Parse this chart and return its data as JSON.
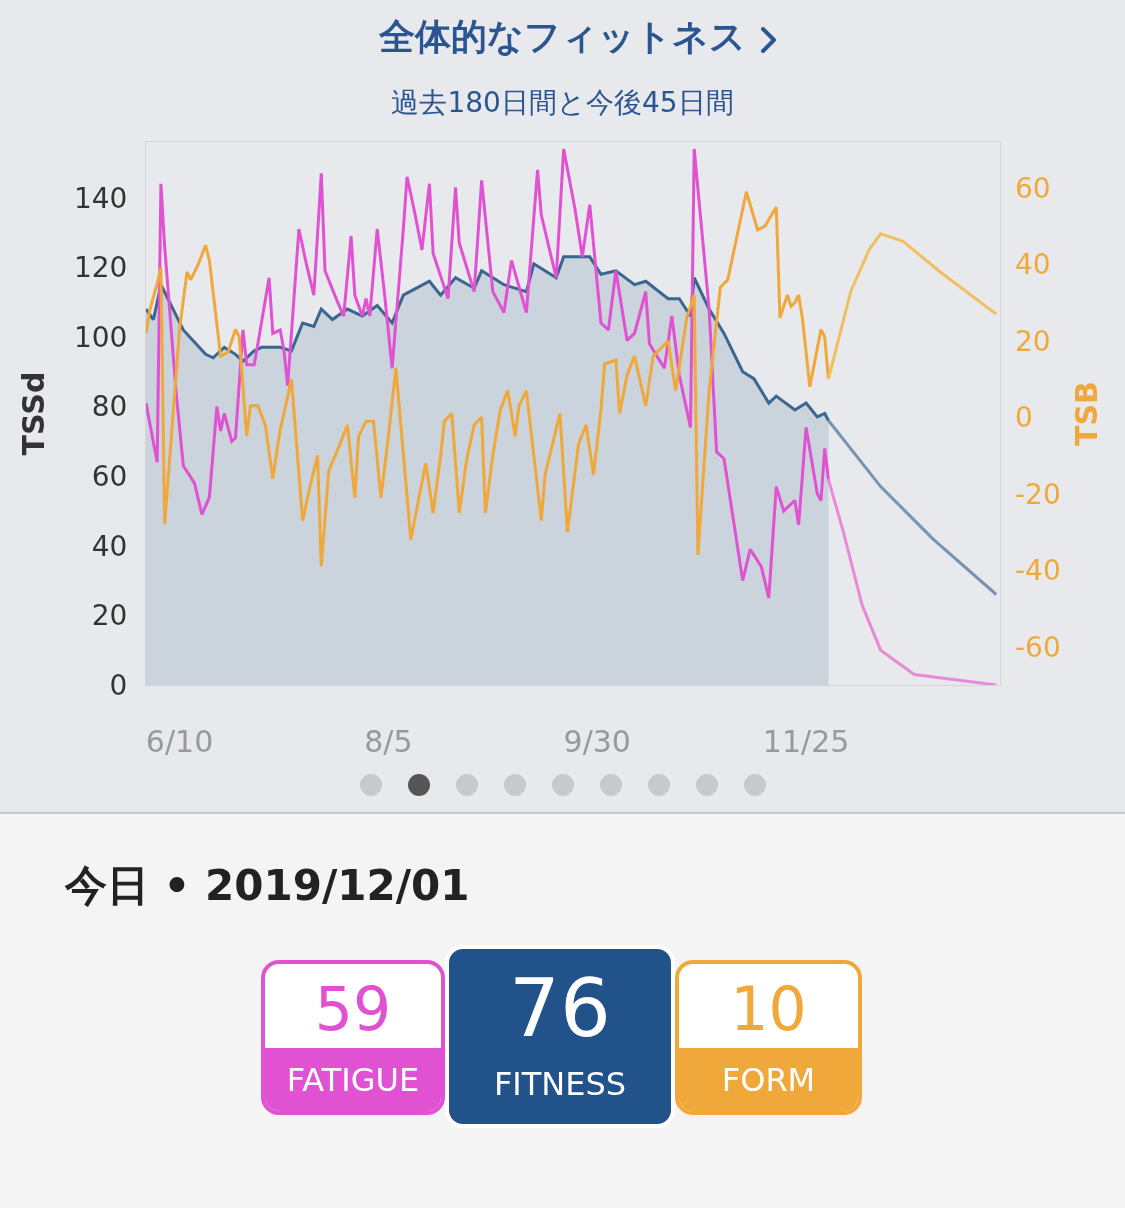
{
  "chart_data": {
    "type": "line",
    "title": "全体的なフィットネス",
    "subtitle": "過去180日間と今後45日間",
    "ylabel": "TSSd",
    "y2label": "TSB",
    "xticks": [
      {
        "value": "2019-06-10",
        "label": "6/10"
      },
      {
        "value": "2019-08-05",
        "label": "8/5"
      },
      {
        "value": "2019-09-30",
        "label": "9/30"
      },
      {
        "value": "2019-11-25",
        "label": "11/25"
      }
    ],
    "xlim": [
      "2019-06-01",
      "2020-01-16"
    ],
    "ylim": [
      0,
      156
    ],
    "yticks": [
      0,
      20,
      40,
      60,
      80,
      100,
      120,
      140
    ],
    "y2lim": [
      -70,
      72
    ],
    "y2ticks": [
      -60,
      -40,
      -20,
      0,
      20,
      40,
      60
    ],
    "annotations": [
      "今日 • 2019/12/01",
      "59",
      "FATIGUE",
      "76",
      "FITNESS",
      "10",
      "FORM"
    ],
    "series": [
      {
        "type": "area",
        "color": "#3a6690",
        "x": [
          "2019-06-01",
          "2019-06-03",
          "2019-06-05",
          "2019-06-11",
          "2019-06-17",
          "2019-06-19",
          "2019-06-22",
          "2019-06-25",
          "2019-06-27",
          "2019-06-30",
          "2019-07-02",
          "2019-07-07",
          "2019-07-10",
          "2019-07-13",
          "2019-07-16",
          "2019-07-18",
          "2019-07-21",
          "2019-07-25",
          "2019-07-29",
          "2019-08-02",
          "2019-08-06",
          "2019-08-09",
          "2019-08-16",
          "2019-08-19",
          "2019-08-23",
          "2019-08-28",
          "2019-08-30",
          "2019-09-05",
          "2019-09-11",
          "2019-09-13",
          "2019-09-19",
          "2019-09-21",
          "2019-09-28",
          "2019-10-01",
          "2019-10-05",
          "2019-10-10",
          "2019-10-13",
          "2019-10-19",
          "2019-10-22",
          "2019-10-25",
          "2019-10-26",
          "2019-10-30",
          "2019-11-03",
          "2019-11-08",
          "2019-11-11",
          "2019-11-15",
          "2019-11-17",
          "2019-11-22",
          "2019-11-25",
          "2019-11-28",
          "2019-11-30",
          "2019-12-01"
        ],
        "values": [
          108,
          105,
          115,
          102,
          95,
          94,
          97,
          95,
          93,
          96,
          97,
          97,
          96,
          104,
          103,
          108,
          105,
          108,
          106,
          109,
          104,
          112,
          116,
          112,
          117,
          114,
          119,
          115,
          113,
          121,
          117,
          123,
          123,
          118,
          119,
          115,
          116,
          111,
          111,
          106,
          117,
          108,
          101,
          90,
          88,
          81,
          83,
          79,
          81,
          77,
          78,
          76
        ]
      },
      {
        "type": "line",
        "color": "#e052d2",
        "x": [
          "2019-06-01",
          "2019-06-04",
          "2019-06-05",
          "2019-06-06",
          "2019-06-09",
          "2019-06-11",
          "2019-06-14",
          "2019-06-16",
          "2019-06-18",
          "2019-06-20",
          "2019-06-21",
          "2019-06-22",
          "2019-06-24",
          "2019-06-25",
          "2019-06-27",
          "2019-06-28",
          "2019-06-30",
          "2019-07-01",
          "2019-07-04",
          "2019-07-05",
          "2019-07-07",
          "2019-07-08",
          "2019-07-09",
          "2019-07-12",
          "2019-07-14",
          "2019-07-16",
          "2019-07-18",
          "2019-07-19",
          "2019-07-22",
          "2019-07-24",
          "2019-07-26",
          "2019-07-27",
          "2019-07-29",
          "2019-07-30",
          "2019-07-31",
          "2019-08-02",
          "2019-08-04",
          "2019-08-06",
          "2019-08-09",
          "2019-08-10",
          "2019-08-12",
          "2019-08-14",
          "2019-08-16",
          "2019-08-17",
          "2019-08-21",
          "2019-08-23",
          "2019-08-24",
          "2019-08-28",
          "2019-08-30",
          "2019-09-02",
          "2019-09-05",
          "2019-09-07",
          "2019-09-11",
          "2019-09-14",
          "2019-09-15",
          "2019-09-19",
          "2019-09-21",
          "2019-09-24",
          "2019-09-26",
          "2019-09-28",
          "2019-10-01",
          "2019-10-03",
          "2019-10-05",
          "2019-10-08",
          "2019-10-10",
          "2019-10-13",
          "2019-10-14",
          "2019-10-18",
          "2019-10-20",
          "2019-10-22",
          "2019-10-25",
          "2019-10-26",
          "2019-10-30",
          "2019-11-01",
          "2019-11-03",
          "2019-11-08",
          "2019-11-10",
          "2019-11-13",
          "2019-11-15",
          "2019-11-17",
          "2019-11-19",
          "2019-11-22",
          "2019-11-23",
          "2019-11-25",
          "2019-11-28",
          "2019-11-29",
          "2019-11-30",
          "2019-12-01"
        ],
        "values": [
          81,
          64,
          144,
          126,
          85,
          63,
          58,
          49,
          54,
          80,
          73,
          78,
          70,
          71,
          102,
          92,
          92,
          98,
          117,
          101,
          102,
          96,
          86,
          131,
          121,
          112,
          147,
          119,
          111,
          106,
          129,
          112,
          106,
          111,
          106,
          131,
          112,
          91,
          131,
          146,
          136,
          125,
          144,
          124,
          111,
          143,
          127,
          113,
          145,
          113,
          107,
          122,
          107,
          148,
          135,
          117,
          154,
          137,
          123,
          138,
          104,
          102,
          119,
          99,
          101,
          113,
          98,
          91,
          106,
          89,
          74,
          154,
          108,
          67,
          65,
          30,
          39,
          34,
          25,
          57,
          50,
          53,
          46,
          74,
          55,
          53,
          68,
          59
        ]
      },
      {
        "type": "line",
        "axis": "y2",
        "color": "#f0a83a",
        "x": [
          "2019-06-01",
          "2019-06-02",
          "2019-06-04",
          "2019-06-05",
          "2019-06-06",
          "2019-06-10",
          "2019-06-12",
          "2019-06-13",
          "2019-06-15",
          "2019-06-17",
          "2019-06-18",
          "2019-06-21",
          "2019-06-23",
          "2019-06-25",
          "2019-06-26",
          "2019-06-28",
          "2019-06-29",
          "2019-07-01",
          "2019-07-03",
          "2019-07-05",
          "2019-07-07",
          "2019-07-08",
          "2019-07-10",
          "2019-07-13",
          "2019-07-15",
          "2019-07-17",
          "2019-07-18",
          "2019-07-20",
          "2019-07-23",
          "2019-07-25",
          "2019-07-27",
          "2019-07-28",
          "2019-07-30",
          "2019-08-01",
          "2019-08-03",
          "2019-08-05",
          "2019-08-07",
          "2019-08-11",
          "2019-08-15",
          "2019-08-17",
          "2019-08-19",
          "2019-08-20",
          "2019-08-22",
          "2019-08-24",
          "2019-08-26",
          "2019-08-28",
          "2019-08-30",
          "2019-08-31",
          "2019-09-02",
          "2019-09-04",
          "2019-09-06",
          "2019-09-08",
          "2019-09-09",
          "2019-09-11",
          "2019-09-15",
          "2019-09-16",
          "2019-09-20",
          "2019-09-22",
          "2019-09-25",
          "2019-09-27",
          "2019-09-29",
          "2019-10-01",
          "2019-10-02",
          "2019-10-05",
          "2019-10-06",
          "2019-10-08",
          "2019-10-10",
          "2019-10-13",
          "2019-10-15",
          "2019-10-19",
          "2019-10-21",
          "2019-10-24",
          "2019-10-26",
          "2019-10-27",
          "2019-10-30",
          "2019-11-02",
          "2019-11-04",
          "2019-11-09",
          "2019-11-12",
          "2019-11-14",
          "2019-11-17",
          "2019-11-18",
          "2019-11-20",
          "2019-11-21",
          "2019-11-22",
          "2019-11-23",
          "2019-11-24",
          "2019-11-26",
          "2019-11-29",
          "2019-11-30",
          "2019-12-01"
        ],
        "values": [
          22,
          28,
          35,
          39,
          -28,
          23,
          38,
          36,
          40,
          45,
          41,
          16,
          17,
          23,
          21,
          -5,
          3,
          3,
          -2,
          -16,
          -3,
          1,
          10,
          -27,
          -18,
          -10,
          -39,
          -14,
          -7,
          -2,
          -21,
          -5,
          -1,
          -1,
          -21,
          -5,
          13,
          -32,
          -12,
          -25,
          -10,
          -1,
          1,
          -25,
          -11,
          -2,
          0,
          -25,
          -10,
          2,
          7,
          -5,
          3,
          7,
          -27,
          -15,
          1,
          -30,
          -7,
          -2,
          -15,
          2,
          14,
          15,
          1,
          11,
          16,
          3,
          16,
          20,
          7,
          26,
          32,
          -36,
          7,
          34,
          36,
          59,
          49,
          50,
          55,
          26,
          32,
          29,
          30,
          32,
          26,
          8,
          23,
          21,
          10
        ]
      },
      {
        "type": "line",
        "color": "#7893b0",
        "x": [
          "2019-12-01",
          "2019-12-15",
          "2019-12-29",
          "2020-01-15"
        ],
        "values": [
          76,
          57,
          42,
          26
        ]
      },
      {
        "type": "line",
        "color": "#e88ad8",
        "x": [
          "2019-12-01",
          "2019-12-05",
          "2019-12-10",
          "2019-12-15",
          "2019-12-24",
          "2020-01-15"
        ],
        "values": [
          59,
          44,
          23,
          10,
          3,
          0
        ]
      },
      {
        "type": "line",
        "axis": "y2",
        "color": "#f0c060",
        "x": [
          "2019-12-01",
          "2019-12-07",
          "2019-12-12",
          "2019-12-15",
          "2019-12-21",
          "2019-12-31",
          "2020-01-15"
        ],
        "values": [
          10,
          33,
          44,
          48,
          46,
          38,
          27
        ]
      }
    ]
  }
}
